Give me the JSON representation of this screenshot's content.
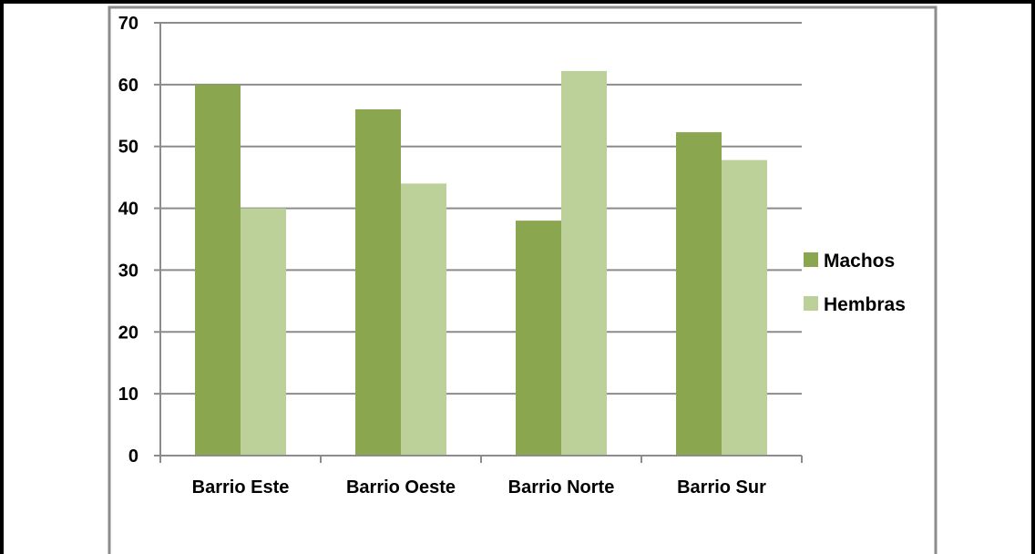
{
  "chart_data": {
    "type": "bar",
    "categories": [
      "Barrio Este",
      "Barrio Oeste",
      "Barrio Norte",
      "Barrio Sur"
    ],
    "series": [
      {
        "name": "Machos",
        "values": [
          60,
          56,
          38,
          52.3
        ],
        "color": "#8aa64f"
      },
      {
        "name": "Hembras",
        "values": [
          40,
          44,
          62.2,
          47.8
        ],
        "color": "#bcd19a"
      }
    ],
    "ylim": [
      0,
      70
    ],
    "yticks": [
      0,
      10,
      20,
      30,
      40,
      50,
      60,
      70
    ],
    "grid": true,
    "legend_position": "right",
    "title": "",
    "xlabel": "",
    "ylabel": ""
  }
}
